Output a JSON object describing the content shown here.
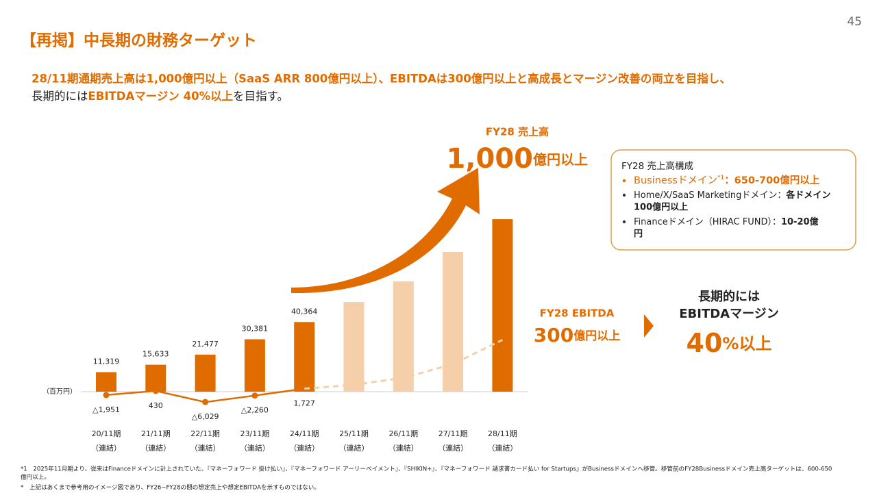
{
  "page_number": "45",
  "title": "【再掲】中長期の財務ターゲット",
  "lead": {
    "line1": "28/11期通期売上高は1,000億円以上（SaaS ARR 800億円以上）、EBITDAは300億円以上と高成長とマージン改善の両立を目指し、",
    "line2": [
      "長期的には",
      "EBITDAマージン 40%以上",
      "を目指す。"
    ]
  },
  "chart_data": {
    "type": "bar",
    "unit_label": "（百万円）",
    "categories": [
      "20/11期",
      "21/11期",
      "22/11期",
      "23/11期",
      "24/11期",
      "25/11期",
      "26/11期",
      "27/11期",
      "28/11期"
    ],
    "category_sublabels": [
      "（連結）",
      "（連結）",
      "（連結）",
      "（連結）",
      "（連結）",
      "（連結）",
      "（連結）",
      "（連結）",
      "（連結）"
    ],
    "series": [
      {
        "name": "売上高",
        "type": "bar",
        "colors": [
          "#e06c00",
          "#e06c00",
          "#e06c00",
          "#e06c00",
          "#e06c00",
          "#f5cfa9",
          "#f5cfa9",
          "#f5cfa9",
          "#e06c00"
        ],
        "values": [
          11319,
          15633,
          21477,
          30381,
          40364,
          52000,
          64000,
          81000,
          100000
        ],
        "value_labels": [
          "11,319",
          "15,633",
          "21,477",
          "30,381",
          "40,364",
          null,
          null,
          null,
          null
        ]
      },
      {
        "name": "EBITDA",
        "type": "line",
        "color": "#e06c00",
        "values": [
          -1951,
          430,
          -6029,
          -2260,
          1727,
          null,
          null,
          null,
          null
        ],
        "value_labels": [
          "△1,951",
          "430",
          "△6,029",
          "△2,260",
          "1,727",
          null,
          null,
          null,
          null
        ]
      },
      {
        "name": "EBITDA（想定）",
        "type": "line",
        "dashed": true,
        "color": "#f5cfa9",
        "values": [
          null,
          null,
          null,
          null,
          1727,
          4000,
          8000,
          16000,
          30000
        ]
      }
    ]
  },
  "revenue_target": {
    "label": "FY28 売上高",
    "number": "1,000",
    "unit": "億円以上"
  },
  "breakdown": {
    "title": "FY28 売上高構成",
    "items": [
      {
        "name": "Businessドメイン",
        "note": "*1",
        "value": "：650-700億円以上"
      },
      {
        "name": "Home/X/SaaS Marketingドメイン：",
        "value": [
          "各ドメイン",
          "100億円以上"
        ]
      },
      {
        "name": "Financeドメイン（HIRAC FUND）：",
        "value": [
          "10-20億",
          "円"
        ]
      }
    ]
  },
  "ebitda_target": {
    "label": "FY28 EBITDA",
    "number": "300",
    "unit": "億円以上"
  },
  "margin_target": {
    "line1": "長期的には",
    "line2": "EBITDAマージン",
    "number": "40",
    "unit": "%以上"
  },
  "footnotes": [
    "*1　2025年11月期より、従来はFinanceドメインに計上されていた、『マネーフォワード 掛け払い』、『マネーフォワード アーリーペイメント』、『SHIKIN+』、『マネーフォワード 請求書カード払い for Startups』がBusinessドメインへ移管。移管前のFY28Businessドメイン売上高ターゲットは、600-650",
    "億円以上。",
    "*　上記はあくまで参考用のイメージ図であり、FY26~FY28の間の想定売上や想定EBITDAを示すものではない。"
  ]
}
